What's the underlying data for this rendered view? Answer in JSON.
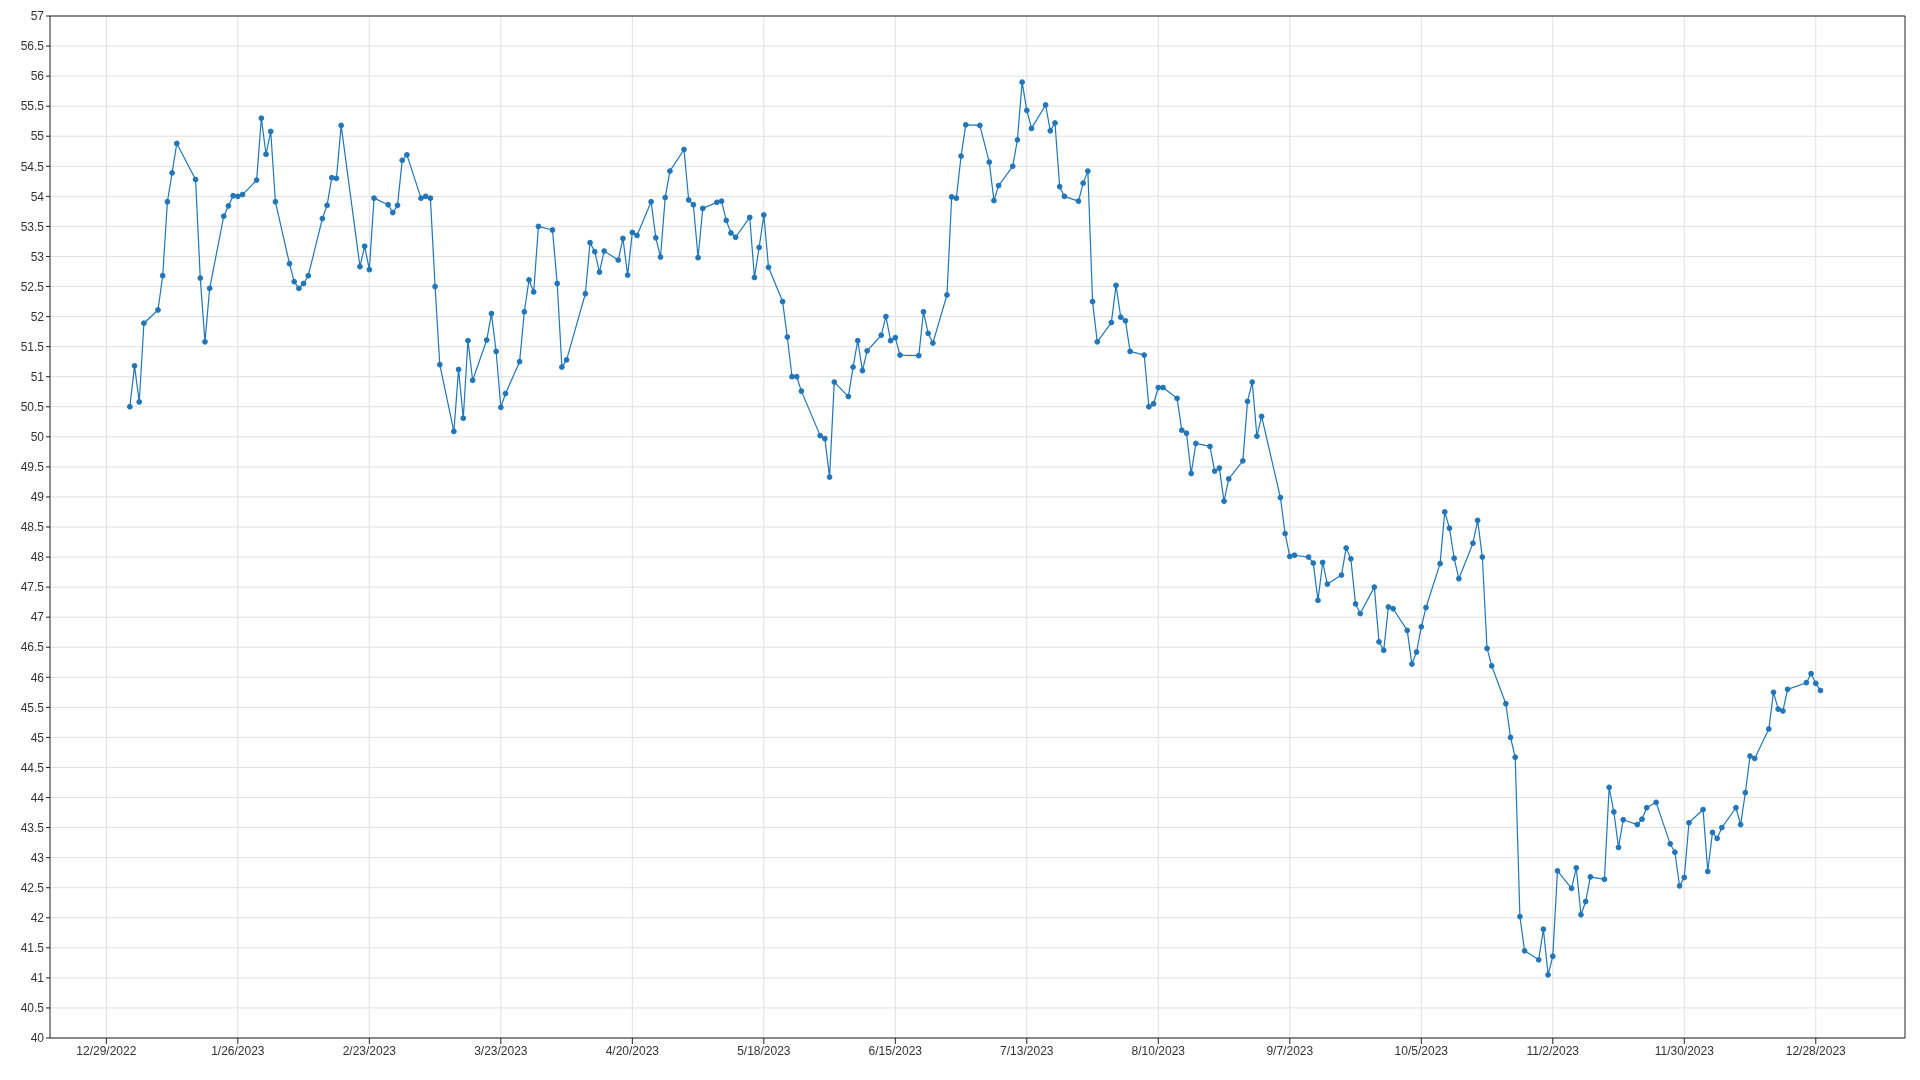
{
  "chart_data": {
    "type": "line",
    "x": [
      "2023-01-03",
      "2023-01-04",
      "2023-01-05",
      "2023-01-06",
      "2023-01-09",
      "2023-01-10",
      "2023-01-11",
      "2023-01-12",
      "2023-01-13",
      "2023-01-17",
      "2023-01-18",
      "2023-01-19",
      "2023-01-20",
      "2023-01-23",
      "2023-01-24",
      "2023-01-25",
      "2023-01-26",
      "2023-01-27",
      "2023-01-30",
      "2023-01-31",
      "2023-02-01",
      "2023-02-02",
      "2023-02-03",
      "2023-02-06",
      "2023-02-07",
      "2023-02-08",
      "2023-02-09",
      "2023-02-10",
      "2023-02-13",
      "2023-02-14",
      "2023-02-15",
      "2023-02-16",
      "2023-02-17",
      "2023-02-21",
      "2023-02-22",
      "2023-02-23",
      "2023-02-24",
      "2023-02-27",
      "2023-02-28",
      "2023-03-01",
      "2023-03-02",
      "2023-03-03",
      "2023-03-06",
      "2023-03-07",
      "2023-03-08",
      "2023-03-09",
      "2023-03-10",
      "2023-03-13",
      "2023-03-14",
      "2023-03-15",
      "2023-03-16",
      "2023-03-17",
      "2023-03-20",
      "2023-03-21",
      "2023-03-22",
      "2023-03-23",
      "2023-03-24",
      "2023-03-27",
      "2023-03-28",
      "2023-03-29",
      "2023-03-30",
      "2023-03-31",
      "2023-04-03",
      "2023-04-04",
      "2023-04-05",
      "2023-04-06",
      "2023-04-10",
      "2023-04-11",
      "2023-04-12",
      "2023-04-13",
      "2023-04-14",
      "2023-04-17",
      "2023-04-18",
      "2023-04-19",
      "2023-04-20",
      "2023-04-21",
      "2023-04-24",
      "2023-04-25",
      "2023-04-26",
      "2023-04-27",
      "2023-04-28",
      "2023-05-01",
      "2023-05-02",
      "2023-05-03",
      "2023-05-04",
      "2023-05-05",
      "2023-05-08",
      "2023-05-09",
      "2023-05-10",
      "2023-05-11",
      "2023-05-12",
      "2023-05-15",
      "2023-05-16",
      "2023-05-17",
      "2023-05-18",
      "2023-05-19",
      "2023-05-22",
      "2023-05-23",
      "2023-05-24",
      "2023-05-25",
      "2023-05-26",
      "2023-05-30",
      "2023-05-31",
      "2023-06-01",
      "2023-06-02",
      "2023-06-05",
      "2023-06-06",
      "2023-06-07",
      "2023-06-08",
      "2023-06-09",
      "2023-06-12",
      "2023-06-13",
      "2023-06-14",
      "2023-06-15",
      "2023-06-16",
      "2023-06-20",
      "2023-06-21",
      "2023-06-22",
      "2023-06-23",
      "2023-06-26",
      "2023-06-27",
      "2023-06-28",
      "2023-06-29",
      "2023-06-30",
      "2023-07-03",
      "2023-07-05",
      "2023-07-06",
      "2023-07-07",
      "2023-07-10",
      "2023-07-11",
      "2023-07-12",
      "2023-07-13",
      "2023-07-14",
      "2023-07-17",
      "2023-07-18",
      "2023-07-19",
      "2023-07-20",
      "2023-07-21",
      "2023-07-24",
      "2023-07-25",
      "2023-07-26",
      "2023-07-27",
      "2023-07-28",
      "2023-07-31",
      "2023-08-01",
      "2023-08-02",
      "2023-08-03",
      "2023-08-04",
      "2023-08-07",
      "2023-08-08",
      "2023-08-09",
      "2023-08-10",
      "2023-08-11",
      "2023-08-14",
      "2023-08-15",
      "2023-08-16",
      "2023-08-17",
      "2023-08-18",
      "2023-08-21",
      "2023-08-22",
      "2023-08-23",
      "2023-08-24",
      "2023-08-25",
      "2023-08-28",
      "2023-08-29",
      "2023-08-30",
      "2023-08-31",
      "2023-09-01",
      "2023-09-05",
      "2023-09-06",
      "2023-09-07",
      "2023-09-08",
      "2023-09-11",
      "2023-09-12",
      "2023-09-13",
      "2023-09-14",
      "2023-09-15",
      "2023-09-18",
      "2023-09-19",
      "2023-09-20",
      "2023-09-21",
      "2023-09-22",
      "2023-09-25",
      "2023-09-26",
      "2023-09-27",
      "2023-09-28",
      "2023-09-29",
      "2023-10-02",
      "2023-10-03",
      "2023-10-04",
      "2023-10-05",
      "2023-10-06",
      "2023-10-09",
      "2023-10-10",
      "2023-10-11",
      "2023-10-12",
      "2023-10-13",
      "2023-10-16",
      "2023-10-17",
      "2023-10-18",
      "2023-10-19",
      "2023-10-20",
      "2023-10-23",
      "2023-10-24",
      "2023-10-25",
      "2023-10-26",
      "2023-10-27",
      "2023-10-30",
      "2023-10-31",
      "2023-11-01",
      "2023-11-02",
      "2023-11-03",
      "2023-11-06",
      "2023-11-07",
      "2023-11-08",
      "2023-11-09",
      "2023-11-10",
      "2023-11-13",
      "2023-11-14",
      "2023-11-15",
      "2023-11-16",
      "2023-11-17",
      "2023-11-20",
      "2023-11-21",
      "2023-11-22",
      "2023-11-24",
      "2023-11-27",
      "2023-11-28",
      "2023-11-29",
      "2023-11-30",
      "2023-12-01",
      "2023-12-04",
      "2023-12-05",
      "2023-12-06",
      "2023-12-07",
      "2023-12-08",
      "2023-12-11",
      "2023-12-12",
      "2023-12-13",
      "2023-12-14",
      "2023-12-15",
      "2023-12-18",
      "2023-12-19",
      "2023-12-20",
      "2023-12-21",
      "2023-12-22",
      "2023-12-26",
      "2023-12-27",
      "2023-12-28",
      "2023-12-29"
    ],
    "values": [
      50.5,
      51.18,
      50.58,
      51.89,
      52.11,
      52.68,
      53.91,
      54.39,
      54.88,
      54.28,
      52.64,
      51.58,
      52.47,
      53.67,
      53.84,
      54.01,
      54.0,
      54.03,
      54.27,
      55.3,
      54.7,
      55.08,
      53.91,
      52.88,
      52.58,
      52.47,
      52.55,
      52.68,
      53.63,
      53.85,
      54.31,
      54.3,
      55.18,
      52.83,
      53.17,
      52.78,
      53.97,
      53.86,
      53.73,
      53.85,
      54.6,
      54.69,
      53.97,
      54.0,
      53.97,
      52.5,
      51.2,
      50.09,
      51.12,
      50.31,
      51.6,
      50.94,
      51.61,
      52.05,
      51.42,
      50.49,
      50.72,
      51.25,
      52.08,
      52.61,
      52.41,
      53.5,
      53.44,
      52.55,
      51.16,
      51.28,
      52.38,
      53.23,
      53.08,
      52.74,
      53.09,
      52.94,
      53.3,
      52.69,
      53.4,
      53.35,
      53.91,
      53.31,
      52.99,
      53.98,
      54.42,
      54.78,
      53.94,
      53.86,
      52.98,
      53.8,
      53.9,
      53.92,
      53.6,
      53.39,
      53.32,
      53.65,
      52.65,
      53.15,
      53.69,
      52.82,
      52.25,
      51.66,
      51.0,
      51.0,
      50.76,
      50.02,
      49.97,
      49.33,
      50.91,
      50.67,
      51.16,
      51.6,
      51.1,
      51.43,
      51.69,
      52.0,
      51.6,
      51.65,
      51.36,
      51.35,
      52.08,
      51.72,
      51.56,
      52.36,
      53.99,
      53.97,
      54.67,
      55.19,
      55.18,
      54.57,
      53.93,
      54.18,
      54.5,
      54.94,
      55.9,
      55.43,
      55.13,
      55.52,
      55.09,
      55.22,
      54.16,
      54.0,
      53.92,
      54.22,
      54.42,
      52.25,
      51.58,
      51.9,
      52.52,
      51.99,
      51.93,
      51.42,
      51.36,
      50.5,
      50.55,
      50.82,
      50.82,
      50.64,
      50.11,
      50.06,
      49.39,
      49.89,
      49.84,
      49.43,
      49.48,
      48.93,
      49.3,
      49.6,
      50.59,
      50.91,
      50.01,
      50.34,
      48.99,
      48.39,
      48.01,
      48.03,
      48.0,
      47.9,
      47.28,
      47.91,
      47.55,
      47.7,
      48.15,
      47.97,
      47.22,
      47.06,
      47.5,
      46.59,
      46.45,
      47.17,
      47.14,
      46.78,
      46.22,
      46.42,
      46.84,
      47.16,
      47.89,
      48.75,
      48.48,
      47.98,
      47.64,
      48.23,
      48.61,
      48.0,
      46.48,
      46.19,
      45.56,
      45.0,
      44.67,
      42.02,
      41.45,
      41.3,
      41.81,
      41.05,
      41.36,
      42.78,
      42.49,
      42.83,
      42.05,
      42.27,
      42.68,
      42.64,
      44.17,
      43.76,
      43.17,
      43.63,
      43.55,
      43.64,
      43.83,
      43.92,
      43.23,
      43.09,
      42.53,
      42.67,
      43.58,
      43.8,
      42.77,
      43.42,
      43.32,
      43.5,
      43.83,
      43.55,
      44.08,
      44.69,
      44.65,
      45.14,
      45.75,
      45.47,
      45.44,
      45.8,
      45.91,
      46.06,
      45.9,
      45.78
    ],
    "color": "#2176b8",
    "xlim": [
      "2022-12-17",
      "2024-01-16"
    ],
    "xticks": [
      {
        "value": "2022-12-29",
        "label": "12/29/2022"
      },
      {
        "value": "2023-01-26",
        "label": "1/26/2023"
      },
      {
        "value": "2023-02-23",
        "label": "2/23/2023"
      },
      {
        "value": "2023-03-23",
        "label": "3/23/2023"
      },
      {
        "value": "2023-04-20",
        "label": "4/20/2023"
      },
      {
        "value": "2023-05-18",
        "label": "5/18/2023"
      },
      {
        "value": "2023-06-15",
        "label": "6/15/2023"
      },
      {
        "value": "2023-07-13",
        "label": "7/13/2023"
      },
      {
        "value": "2023-08-10",
        "label": "8/10/2023"
      },
      {
        "value": "2023-09-07",
        "label": "9/7/2023"
      },
      {
        "value": "2023-10-05",
        "label": "10/5/2023"
      },
      {
        "value": "2023-11-02",
        "label": "11/2/2023"
      },
      {
        "value": "2023-11-30",
        "label": "11/30/2023"
      },
      {
        "value": "2023-12-28",
        "label": "12/28/2023"
      }
    ],
    "ylim": [
      40,
      57
    ],
    "yticks": [
      40,
      40.5,
      41,
      41.5,
      42,
      42.5,
      43,
      43.5,
      44,
      44.5,
      45,
      45.5,
      46,
      46.5,
      47,
      47.5,
      48,
      48.5,
      49,
      49.5,
      50,
      50.5,
      51,
      51.5,
      52,
      52.5,
      53,
      53.5,
      54,
      54.5,
      55,
      55.5,
      56,
      56.5,
      57
    ],
    "grid": true,
    "marker": "circle",
    "line_style": "solid"
  }
}
